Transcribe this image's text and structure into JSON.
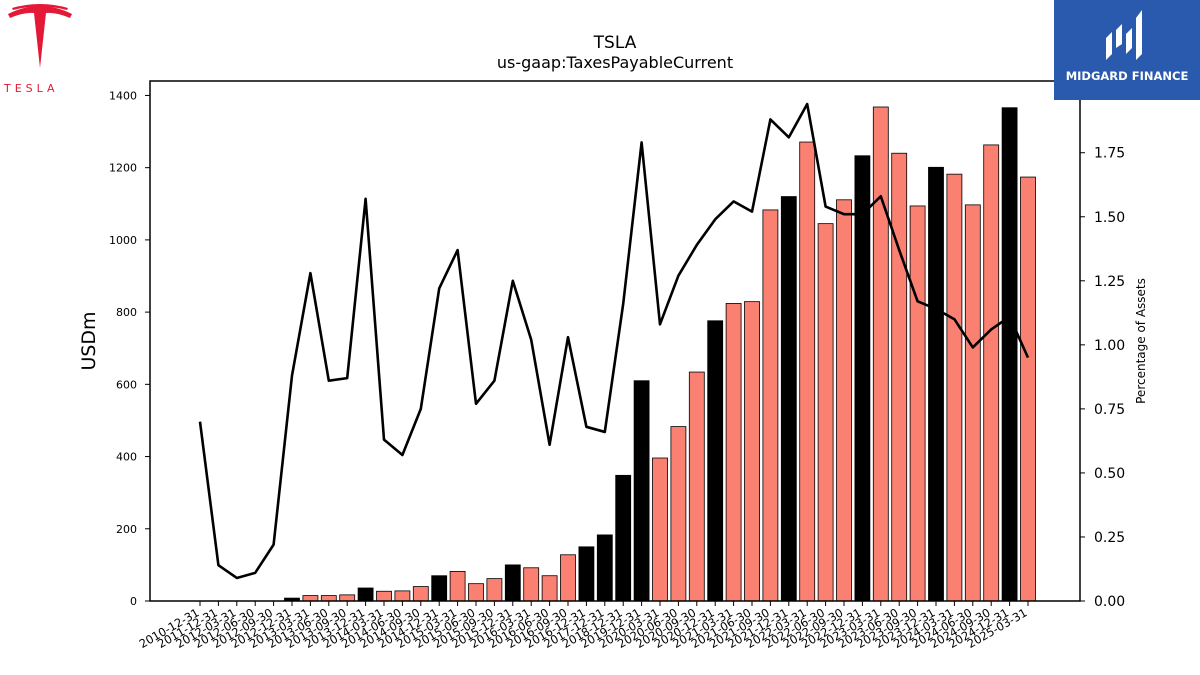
{
  "brand_left": {
    "text": "TESLA",
    "color": "#e31937"
  },
  "brand_right": {
    "text": "MIDGARD FINANCE",
    "bg_color": "#2a5aad"
  },
  "chart_data": {
    "type": "bar",
    "title": "TSLA",
    "subtitle": "us-gaap:TaxesPayableCurrent",
    "ylabel": "USDm",
    "y2label": "Percentage of Assets",
    "ylim": [
      0,
      1440
    ],
    "y2lim": [
      0,
      2.03
    ],
    "yticks": [
      0,
      200,
      400,
      600,
      800,
      1000,
      1200,
      1400
    ],
    "y2ticks": [
      "0.00",
      "0.25",
      "0.50",
      "0.75",
      "1.00",
      "1.25",
      "1.50",
      "1.75"
    ],
    "bar_colors": {
      "annual": "#000000",
      "quarterly": "#fa8072",
      "edge": "#000000"
    },
    "line_color": "#000000",
    "categories": [
      "2010-12-31",
      "2011-12-31",
      "2012-03-31",
      "2012-06-30",
      "2012-09-30",
      "2012-12-31",
      "2013-03-31",
      "2013-06-30",
      "2013-09-30",
      "2013-12-31",
      "2014-03-31",
      "2014-06-30",
      "2014-09-30",
      "2014-12-31",
      "2015-03-31",
      "2015-06-30",
      "2015-09-30",
      "2015-12-31",
      "2016-03-31",
      "2016-06-30",
      "2016-09-30",
      "2016-12-31",
      "2017-12-31",
      "2018-12-31",
      "2019-12-31",
      "2020-03-31",
      "2020-06-30",
      "2020-09-30",
      "2020-12-31",
      "2021-03-31",
      "2021-06-30",
      "2021-09-30",
      "2021-12-31",
      "2022-03-31",
      "2022-06-30",
      "2022-09-30",
      "2022-12-31",
      "2023-03-31",
      "2023-06-30",
      "2023-09-30",
      "2023-12-31",
      "2024-03-31",
      "2024-06-30",
      "2024-09-30",
      "2024-12-31",
      "2025-03-31"
    ],
    "series": [
      {
        "values": [
          0,
          0,
          0,
          0,
          0,
          8,
          15,
          15,
          17,
          36,
          27,
          28,
          40,
          70,
          82,
          48,
          62,
          100,
          92,
          70,
          128,
          150,
          183,
          348,
          610,
          396,
          483,
          634,
          776,
          824,
          829,
          1083,
          1120,
          1271,
          1045,
          1111,
          1233,
          1368,
          1240,
          1094,
          1201,
          1182,
          1097,
          1263,
          1366,
          1174
        ],
        "annual_flags": [
          true,
          true,
          false,
          false,
          false,
          true,
          false,
          false,
          false,
          true,
          false,
          false,
          false,
          true,
          false,
          false,
          false,
          true,
          false,
          false,
          false,
          true,
          true,
          true,
          true,
          false,
          false,
          false,
          true,
          false,
          false,
          false,
          true,
          false,
          false,
          false,
          true,
          false,
          false,
          false,
          true,
          false,
          false,
          false,
          true,
          false
        ]
      },
      {
        "name": "Percentage of Assets",
        "values": [
          0.7,
          0.14,
          0.09,
          0.11,
          0.22,
          0.88,
          1.28,
          0.86,
          0.87,
          1.57,
          0.63,
          0.57,
          0.75,
          1.22,
          1.37,
          0.77,
          0.86,
          1.25,
          1.02,
          0.61,
          1.03,
          0.68,
          0.66,
          1.16,
          1.79,
          1.08,
          1.27,
          1.39,
          1.49,
          1.56,
          1.52,
          1.88,
          1.81,
          1.94,
          1.54,
          1.51,
          1.51,
          1.58,
          1.37,
          1.17,
          1.14,
          1.1,
          0.99,
          1.06,
          1.11,
          0.95
        ]
      }
    ]
  }
}
